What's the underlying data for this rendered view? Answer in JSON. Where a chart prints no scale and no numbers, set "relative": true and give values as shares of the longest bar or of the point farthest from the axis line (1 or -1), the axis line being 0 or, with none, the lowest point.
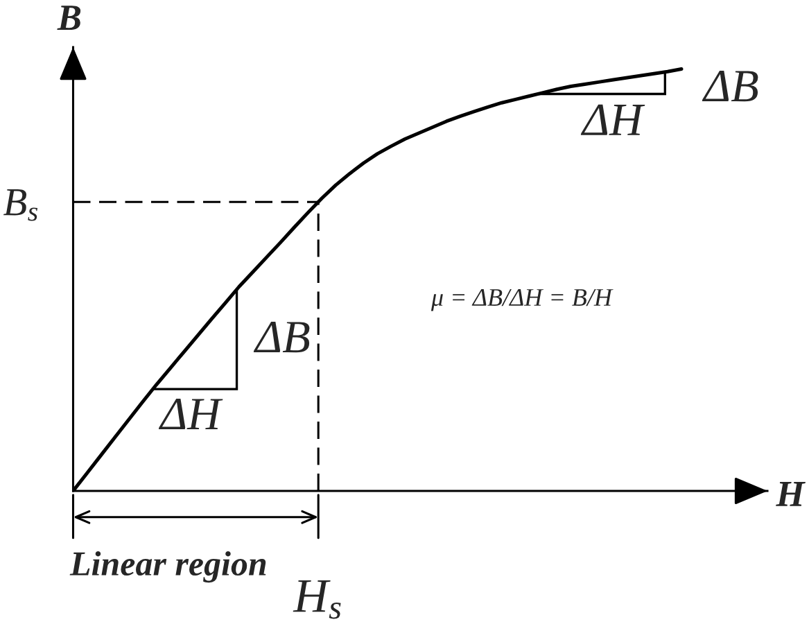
{
  "chart_data": {
    "type": "line",
    "relative": true,
    "xlabel": "H",
    "ylabel": "B",
    "categories": [
      null,
      null,
      null,
      null,
      null,
      null,
      null,
      null,
      null,
      null,
      null,
      null,
      null,
      null,
      null,
      null,
      null,
      null,
      null,
      null,
      null,
      null,
      null,
      null,
      null,
      null,
      null,
      null,
      null,
      null,
      null,
      null,
      null,
      null,
      null,
      null,
      null,
      null,
      null,
      null,
      null,
      null,
      null,
      null,
      null
    ],
    "series": [
      {
        "color": "#000000",
        "values": [
          0,
          0.042,
          0.084,
          0.126,
          0.168,
          0.21,
          0.251,
          0.29,
          0.329,
          0.368,
          0.407,
          0.445,
          0.484,
          0.519,
          0.554,
          0.589,
          0.625,
          0.66,
          0.694,
          0.725,
          0.752,
          0.777,
          0.799,
          0.817,
          0.834,
          0.848,
          0.862,
          0.876,
          0.888,
          0.899,
          0.91,
          0.92,
          0.928,
          0.936,
          0.944,
          0.952,
          0.959,
          0.964,
          0.969,
          0.974,
          0.979,
          0.984,
          0.989,
          0.994,
          1
        ]
      }
    ],
    "ref_lines": [
      {
        "axis": "y",
        "value": 0.685,
        "label": "B$_{s}$",
        "line_style": "dashed",
        "color": "#000000"
      }
    ],
    "annotations": [
      "ΔB",
      "ΔH",
      "μ = ΔB/ΔH = B/H",
      "ΔB",
      "ΔH",
      "Linear region",
      "H$_{s}$"
    ]
  }
}
